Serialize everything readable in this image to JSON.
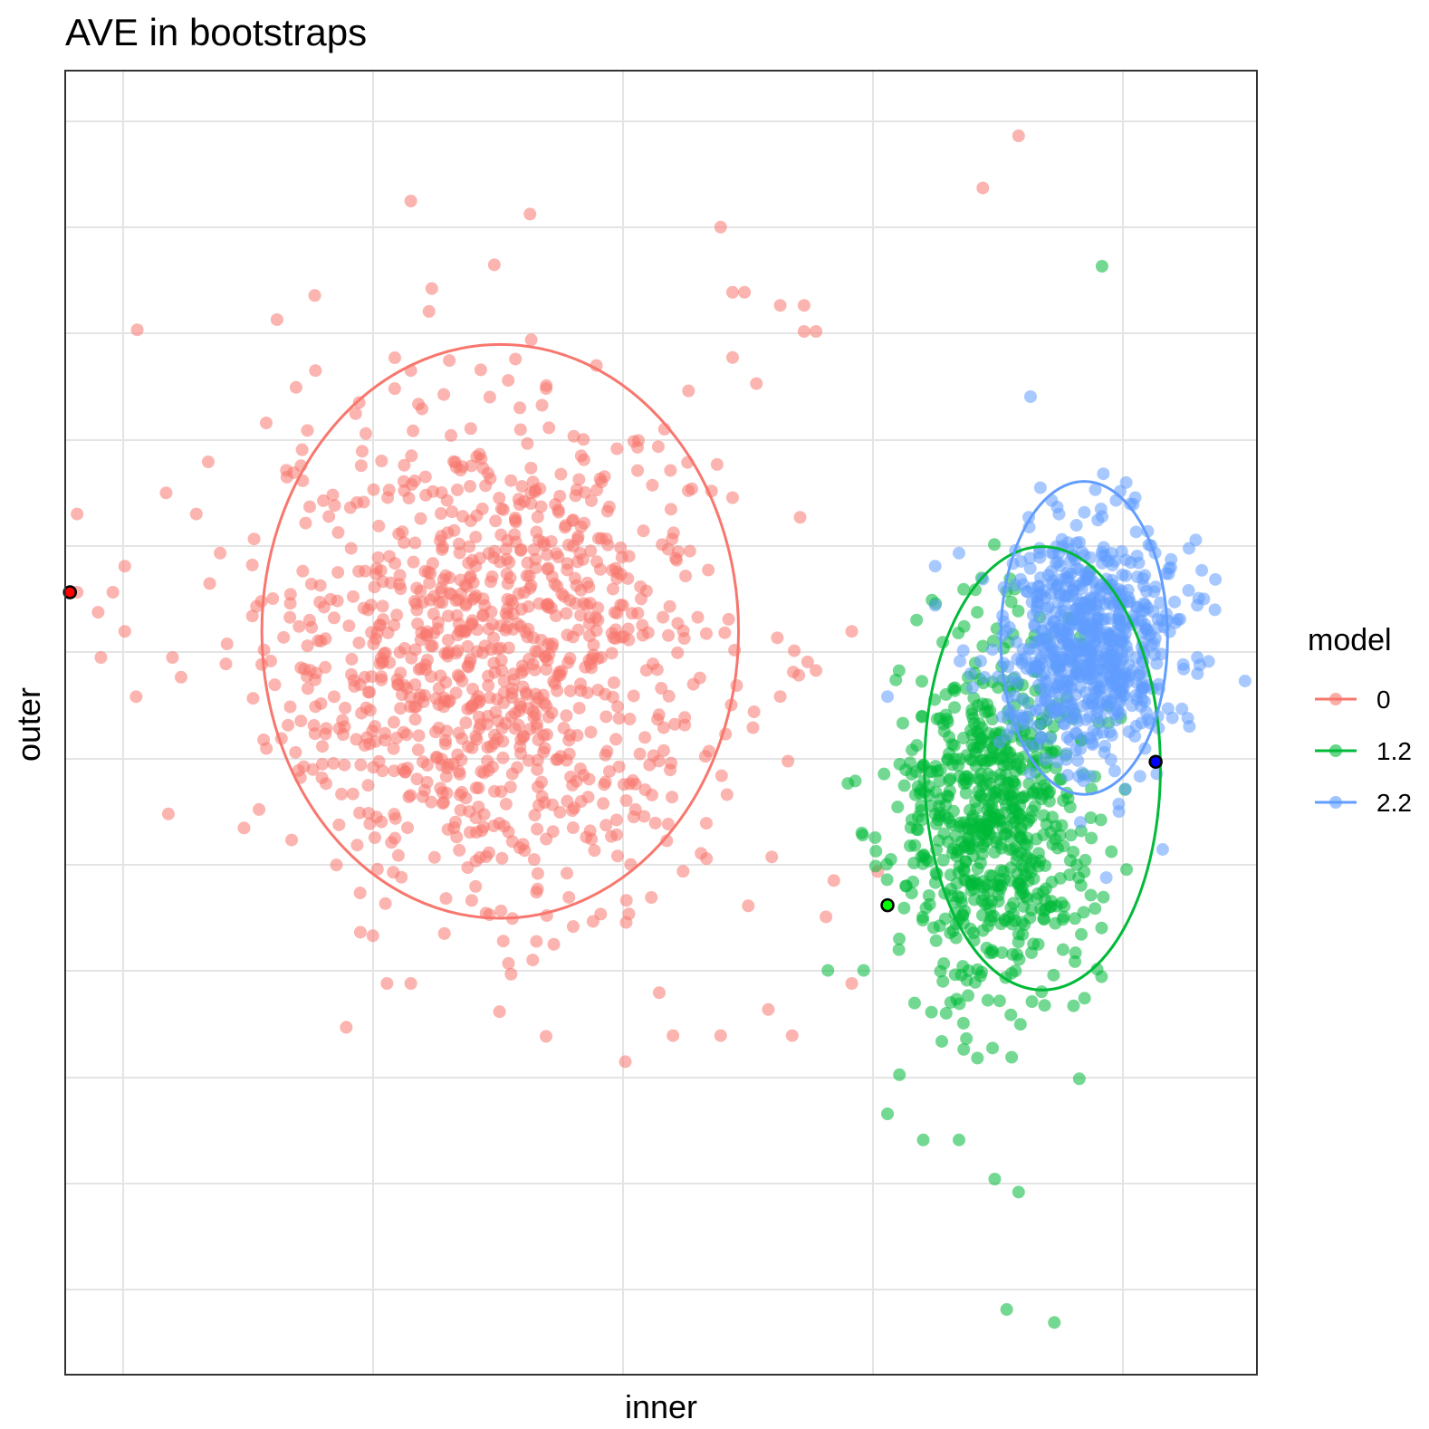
{
  "chart_data": {
    "type": "scatter",
    "title": "AVE in bootstraps",
    "xlabel": "inner",
    "ylabel": "outer",
    "xlim": [
      0,
      100
    ],
    "ylim": [
      0,
      100
    ],
    "grid": true,
    "legend": {
      "title": "model",
      "placement": "right",
      "entries": [
        {
          "label": "0",
          "color": "#F8766D"
        },
        {
          "label": "1.2",
          "color": "#00BA38"
        },
        {
          "label": "2.2",
          "color": "#619CFF"
        }
      ]
    },
    "series": [
      {
        "name": "0",
        "color": "#F8766D",
        "cloud": {
          "cx": 36,
          "cy": 55,
          "sx": 9.5,
          "sy": 9.5,
          "n": 1000
        },
        "outliers": [
          [
            29,
            90
          ],
          [
            39,
            89
          ],
          [
            55,
            88
          ],
          [
            80,
            95
          ],
          [
            77,
            91
          ],
          [
            21,
            77
          ],
          [
            29,
            77
          ],
          [
            56,
            83
          ],
          [
            57,
            83
          ],
          [
            60,
            82
          ],
          [
            62,
            82
          ],
          [
            63,
            80
          ],
          [
            62,
            80
          ],
          [
            58,
            76
          ],
          [
            56,
            78
          ],
          [
            5,
            62
          ],
          [
            5,
            57
          ],
          [
            4,
            60
          ],
          [
            3,
            55
          ],
          [
            1,
            66
          ],
          [
            1,
            60
          ],
          [
            60,
            52
          ],
          [
            63,
            54
          ],
          [
            66,
            57
          ],
          [
            19,
            41
          ],
          [
            9,
            55
          ],
          [
            27,
            30
          ],
          [
            29,
            30
          ],
          [
            47,
            24
          ],
          [
            51,
            26
          ],
          [
            41,
            33
          ],
          [
            61,
            26
          ],
          [
            55,
            26
          ],
          [
            59,
            28
          ],
          [
            66,
            30
          ],
          [
            11,
            66
          ],
          [
            12,
            70
          ],
          [
            13,
            63
          ]
        ],
        "highlight": [
          0.4,
          60
        ],
        "ellipse": {
          "cx": 36.5,
          "cy": 57,
          "rx": 20,
          "ry": 22
        }
      },
      {
        "name": "1.2",
        "color": "#00BA38",
        "cloud": {
          "cx": 78,
          "cy": 43,
          "sx": 4.0,
          "sy": 7.0,
          "n": 700
        },
        "outliers": [
          [
            87,
            85
          ],
          [
            79,
            5
          ],
          [
            80,
            14
          ],
          [
            83,
            4
          ],
          [
            67,
            31
          ],
          [
            70,
            23
          ],
          [
            69,
            20
          ],
          [
            72,
            18
          ],
          [
            75,
            18
          ],
          [
            78,
            15
          ],
          [
            64,
            31
          ],
          [
            68,
            39
          ]
        ],
        "highlight": [
          69,
          36
        ],
        "ellipse": {
          "cx": 82,
          "cy": 46.5,
          "rx": 9.9,
          "ry": 17
        }
      },
      {
        "name": "2.2",
        "color": "#619CFF",
        "cloud": {
          "cx": 86,
          "cy": 56,
          "sx": 3.5,
          "sy": 4.5,
          "n": 700
        },
        "outliers": [
          [
            81,
            75
          ],
          [
            73,
            62
          ],
          [
            75,
            63
          ],
          [
            73,
            59
          ],
          [
            77,
            61
          ],
          [
            69,
            52
          ],
          [
            95,
            59
          ],
          [
            95,
            55
          ]
        ],
        "highlight": [
          91.5,
          47
        ],
        "ellipse": {
          "cx": 85.5,
          "cy": 56.5,
          "rx": 7,
          "ry": 12
        }
      }
    ]
  }
}
